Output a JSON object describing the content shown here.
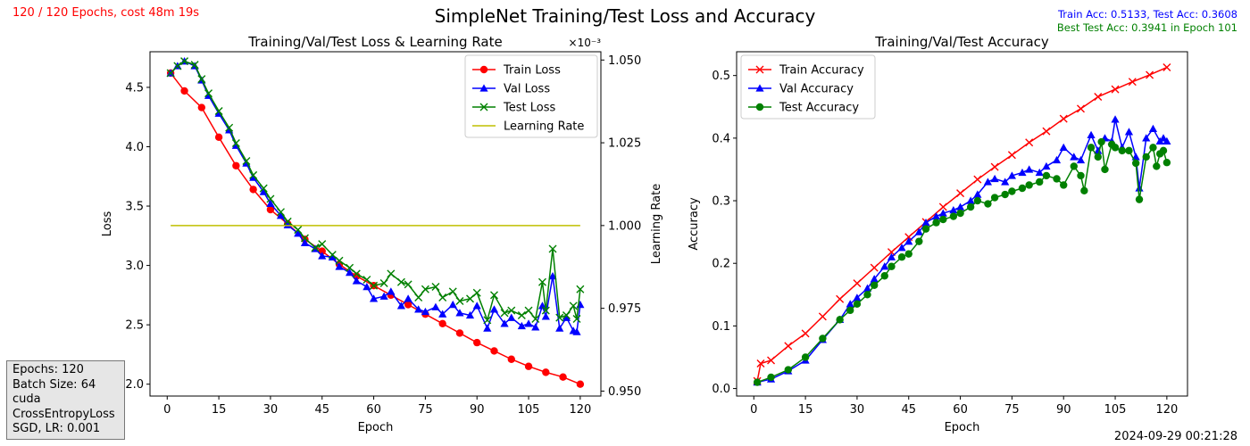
{
  "figure": {
    "suptitle": "SimpleNet Training/Test Loss and Accuracy",
    "progress_text": "120 / 120 Epochs, cost 48m 19s",
    "acc_summary": "Train Acc: 0.5133, Test Acc: 0.3608",
    "best_summary": "Best Test Acc: 0.3941 in Epoch 101",
    "timestamp": "2024-09-29 00:21:28",
    "info_lines": [
      "Epochs: 120",
      "Batch Size: 64",
      "cuda",
      "CrossEntropyLoss",
      "SGD, LR: 0.001"
    ],
    "colors": {
      "progress": "#ff0000",
      "acc_summary": "#0000ff",
      "best_summary": "#008000"
    }
  },
  "chart_data": [
    {
      "type": "line",
      "title": "Training/Val/Test Loss & Learning Rate",
      "xlabel": "Epoch",
      "ylabel": "Loss",
      "y2label": "Learning Rate",
      "y2_offset_text": "×10⁻³",
      "xlim": [
        -5,
        126
      ],
      "ylim": [
        1.9,
        4.8
      ],
      "y2lim": [
        0.9485,
        1.0525
      ],
      "xticks": [
        0,
        15,
        30,
        45,
        60,
        75,
        90,
        105,
        120
      ],
      "yticks": [
        2.0,
        2.5,
        3.0,
        3.5,
        4.0,
        4.5
      ],
      "y2ticks": [
        0.95,
        0.975,
        1.0,
        1.025,
        1.05
      ],
      "legend_position": "top-right",
      "series": [
        {
          "name": "Train Loss",
          "color": "#ff0000",
          "marker": "circle",
          "axis": "left",
          "points": [
            [
              1,
              4.62
            ],
            [
              5,
              4.47
            ],
            [
              10,
              4.33
            ],
            [
              15,
              4.08
            ],
            [
              20,
              3.84
            ],
            [
              25,
              3.64
            ],
            [
              30,
              3.47
            ],
            [
              35,
              3.35
            ],
            [
              40,
              3.22
            ],
            [
              45,
              3.12
            ],
            [
              50,
              3.01
            ],
            [
              55,
              2.91
            ],
            [
              60,
              2.83
            ],
            [
              65,
              2.75
            ],
            [
              70,
              2.67
            ],
            [
              75,
              2.59
            ],
            [
              80,
              2.51
            ],
            [
              85,
              2.43
            ],
            [
              90,
              2.35
            ],
            [
              95,
              2.28
            ],
            [
              100,
              2.21
            ],
            [
              105,
              2.15
            ],
            [
              110,
              2.1
            ],
            [
              115,
              2.06
            ],
            [
              120,
              2.0
            ]
          ]
        },
        {
          "name": "Val Loss",
          "color": "#0000ff",
          "marker": "triangle",
          "axis": "left",
          "points": [
            [
              1,
              4.62
            ],
            [
              3,
              4.68
            ],
            [
              5,
              4.72
            ],
            [
              8,
              4.68
            ],
            [
              10,
              4.56
            ],
            [
              12,
              4.43
            ],
            [
              15,
              4.28
            ],
            [
              18,
              4.14
            ],
            [
              20,
              4.01
            ],
            [
              23,
              3.86
            ],
            [
              25,
              3.74
            ],
            [
              28,
              3.62
            ],
            [
              30,
              3.52
            ],
            [
              33,
              3.42
            ],
            [
              35,
              3.34
            ],
            [
              38,
              3.27
            ],
            [
              40,
              3.19
            ],
            [
              43,
              3.14
            ],
            [
              45,
              3.08
            ],
            [
              48,
              3.07
            ],
            [
              50,
              2.99
            ],
            [
              53,
              2.94
            ],
            [
              55,
              2.87
            ],
            [
              58,
              2.82
            ],
            [
              60,
              2.72
            ],
            [
              63,
              2.74
            ],
            [
              65,
              2.78
            ],
            [
              68,
              2.66
            ],
            [
              70,
              2.72
            ],
            [
              73,
              2.63
            ],
            [
              75,
              2.61
            ],
            [
              78,
              2.65
            ],
            [
              80,
              2.59
            ],
            [
              83,
              2.67
            ],
            [
              85,
              2.6
            ],
            [
              88,
              2.58
            ],
            [
              90,
              2.66
            ],
            [
              93,
              2.47
            ],
            [
              95,
              2.63
            ],
            [
              98,
              2.51
            ],
            [
              100,
              2.56
            ],
            [
              103,
              2.49
            ],
            [
              105,
              2.51
            ],
            [
              107,
              2.48
            ],
            [
              109,
              2.66
            ],
            [
              110,
              2.57
            ],
            [
              112,
              2.91
            ],
            [
              114,
              2.47
            ],
            [
              116,
              2.56
            ],
            [
              118,
              2.45
            ],
            [
              119,
              2.44
            ],
            [
              120,
              2.67
            ]
          ]
        },
        {
          "name": "Test Loss",
          "color": "#008000",
          "marker": "x",
          "axis": "left",
          "points": [
            [
              1,
              4.62
            ],
            [
              3,
              4.68
            ],
            [
              5,
              4.72
            ],
            [
              8,
              4.69
            ],
            [
              10,
              4.57
            ],
            [
              12,
              4.45
            ],
            [
              15,
              4.3
            ],
            [
              18,
              4.16
            ],
            [
              20,
              4.03
            ],
            [
              23,
              3.88
            ],
            [
              25,
              3.76
            ],
            [
              28,
              3.65
            ],
            [
              30,
              3.56
            ],
            [
              33,
              3.45
            ],
            [
              35,
              3.37
            ],
            [
              38,
              3.3
            ],
            [
              40,
              3.23
            ],
            [
              43,
              3.15
            ],
            [
              45,
              3.18
            ],
            [
              48,
              3.09
            ],
            [
              50,
              3.04
            ],
            [
              53,
              2.98
            ],
            [
              55,
              2.93
            ],
            [
              58,
              2.88
            ],
            [
              60,
              2.83
            ],
            [
              63,
              2.85
            ],
            [
              65,
              2.93
            ],
            [
              68,
              2.86
            ],
            [
              70,
              2.84
            ],
            [
              73,
              2.73
            ],
            [
              75,
              2.8
            ],
            [
              78,
              2.82
            ],
            [
              80,
              2.73
            ],
            [
              83,
              2.78
            ],
            [
              85,
              2.7
            ],
            [
              88,
              2.72
            ],
            [
              90,
              2.77
            ],
            [
              93,
              2.54
            ],
            [
              95,
              2.75
            ],
            [
              98,
              2.6
            ],
            [
              100,
              2.62
            ],
            [
              103,
              2.58
            ],
            [
              105,
              2.62
            ],
            [
              107,
              2.55
            ],
            [
              109,
              2.86
            ],
            [
              110,
              2.62
            ],
            [
              112,
              3.14
            ],
            [
              114,
              2.56
            ],
            [
              116,
              2.58
            ],
            [
              118,
              2.66
            ],
            [
              119,
              2.55
            ],
            [
              120,
              2.8
            ]
          ]
        },
        {
          "name": "Learning Rate",
          "color": "#bfbf00",
          "marker": "none",
          "axis": "right",
          "points": [
            [
              1,
              1.0
            ],
            [
              120,
              1.0
            ]
          ]
        }
      ]
    },
    {
      "type": "line",
      "title": "Training/Val/Test Accuracy",
      "xlabel": "Epoch",
      "ylabel": "Accuracy",
      "xlim": [
        -5,
        126
      ],
      "ylim": [
        -0.012,
        0.538
      ],
      "xticks": [
        0,
        15,
        30,
        45,
        60,
        75,
        90,
        105,
        120
      ],
      "yticks": [
        0.0,
        0.1,
        0.2,
        0.3,
        0.4,
        0.5
      ],
      "legend_position": "top-left",
      "series": [
        {
          "name": "Train Accuracy",
          "color": "#ff0000",
          "marker": "x",
          "points": [
            [
              1,
              0.012
            ],
            [
              2,
              0.04
            ],
            [
              5,
              0.045
            ],
            [
              10,
              0.068
            ],
            [
              15,
              0.088
            ],
            [
              20,
              0.115
            ],
            [
              25,
              0.143
            ],
            [
              30,
              0.168
            ],
            [
              35,
              0.193
            ],
            [
              40,
              0.218
            ],
            [
              45,
              0.242
            ],
            [
              50,
              0.266
            ],
            [
              55,
              0.29
            ],
            [
              60,
              0.312
            ],
            [
              65,
              0.334
            ],
            [
              70,
              0.354
            ],
            [
              75,
              0.373
            ],
            [
              80,
              0.393
            ],
            [
              85,
              0.411
            ],
            [
              90,
              0.431
            ],
            [
              95,
              0.447
            ],
            [
              100,
              0.466
            ],
            [
              105,
              0.478
            ],
            [
              110,
              0.49
            ],
            [
              115,
              0.501
            ],
            [
              120,
              0.513
            ]
          ]
        },
        {
          "name": "Val Accuracy",
          "color": "#0000ff",
          "marker": "triangle",
          "points": [
            [
              1,
              0.01
            ],
            [
              5,
              0.015
            ],
            [
              10,
              0.028
            ],
            [
              15,
              0.045
            ],
            [
              20,
              0.078
            ],
            [
              25,
              0.11
            ],
            [
              28,
              0.135
            ],
            [
              30,
              0.145
            ],
            [
              33,
              0.16
            ],
            [
              35,
              0.175
            ],
            [
              38,
              0.195
            ],
            [
              40,
              0.21
            ],
            [
              43,
              0.225
            ],
            [
              45,
              0.235
            ],
            [
              48,
              0.25
            ],
            [
              50,
              0.265
            ],
            [
              53,
              0.275
            ],
            [
              55,
              0.28
            ],
            [
              58,
              0.285
            ],
            [
              60,
              0.29
            ],
            [
              63,
              0.3
            ],
            [
              65,
              0.31
            ],
            [
              68,
              0.33
            ],
            [
              70,
              0.335
            ],
            [
              73,
              0.33
            ],
            [
              75,
              0.34
            ],
            [
              78,
              0.345
            ],
            [
              80,
              0.35
            ],
            [
              83,
              0.345
            ],
            [
              85,
              0.355
            ],
            [
              88,
              0.365
            ],
            [
              90,
              0.385
            ],
            [
              93,
              0.37
            ],
            [
              95,
              0.365
            ],
            [
              98,
              0.405
            ],
            [
              100,
              0.38
            ],
            [
              102,
              0.4
            ],
            [
              104,
              0.395
            ],
            [
              105,
              0.43
            ],
            [
              107,
              0.385
            ],
            [
              109,
              0.41
            ],
            [
              111,
              0.37
            ],
            [
              112,
              0.32
            ],
            [
              114,
              0.4
            ],
            [
              116,
              0.415
            ],
            [
              118,
              0.395
            ],
            [
              119,
              0.4
            ],
            [
              120,
              0.395
            ]
          ]
        },
        {
          "name": "Test Accuracy",
          "color": "#008000",
          "marker": "circle",
          "points": [
            [
              1,
              0.01
            ],
            [
              5,
              0.018
            ],
            [
              10,
              0.03
            ],
            [
              15,
              0.05
            ],
            [
              20,
              0.08
            ],
            [
              25,
              0.11
            ],
            [
              28,
              0.125
            ],
            [
              30,
              0.135
            ],
            [
              33,
              0.15
            ],
            [
              35,
              0.165
            ],
            [
              38,
              0.18
            ],
            [
              40,
              0.195
            ],
            [
              43,
              0.21
            ],
            [
              45,
              0.215
            ],
            [
              48,
              0.235
            ],
            [
              50,
              0.255
            ],
            [
              53,
              0.265
            ],
            [
              55,
              0.27
            ],
            [
              58,
              0.275
            ],
            [
              60,
              0.28
            ],
            [
              63,
              0.29
            ],
            [
              65,
              0.3
            ],
            [
              68,
              0.295
            ],
            [
              70,
              0.305
            ],
            [
              73,
              0.31
            ],
            [
              75,
              0.315
            ],
            [
              78,
              0.32
            ],
            [
              80,
              0.325
            ],
            [
              83,
              0.33
            ],
            [
              85,
              0.34
            ],
            [
              88,
              0.335
            ],
            [
              90,
              0.325
            ],
            [
              93,
              0.355
            ],
            [
              95,
              0.34
            ],
            [
              96,
              0.316
            ],
            [
              98,
              0.385
            ],
            [
              100,
              0.37
            ],
            [
              101,
              0.394
            ],
            [
              102,
              0.35
            ],
            [
              104,
              0.39
            ],
            [
              105,
              0.385
            ],
            [
              107,
              0.38
            ],
            [
              109,
              0.38
            ],
            [
              111,
              0.36
            ],
            [
              112,
              0.302
            ],
            [
              114,
              0.37
            ],
            [
              116,
              0.385
            ],
            [
              117,
              0.355
            ],
            [
              118,
              0.375
            ],
            [
              119,
              0.38
            ],
            [
              120,
              0.361
            ]
          ]
        }
      ]
    }
  ]
}
